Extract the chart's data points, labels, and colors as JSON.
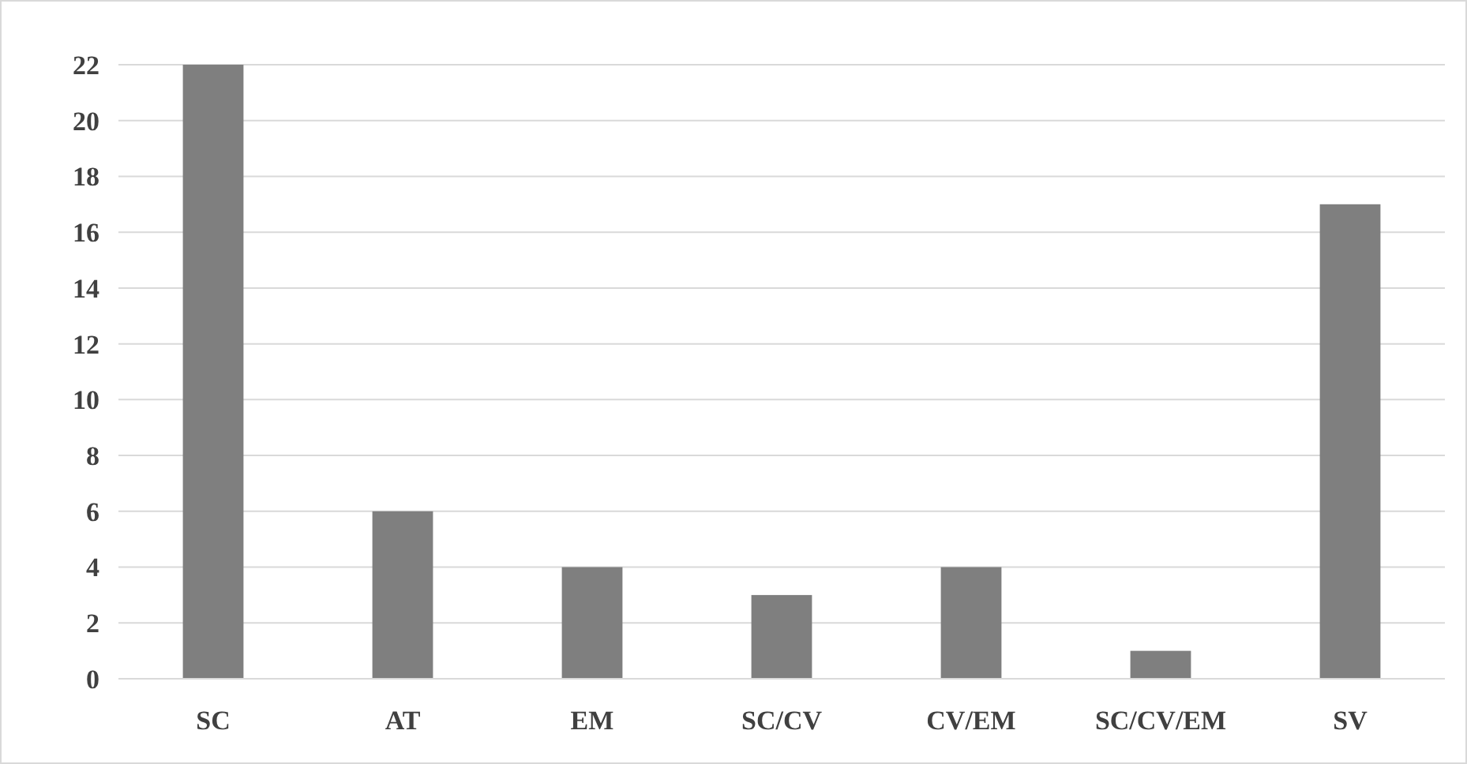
{
  "chart_data": {
    "type": "bar",
    "categories": [
      "SC",
      "AT",
      "EM",
      "SC/CV",
      "CV/EM",
      "SC/CV/EM",
      "SV"
    ],
    "values": [
      22,
      6,
      4,
      3,
      4,
      1,
      17
    ],
    "color": "#7f7f7f",
    "ylim": [
      0,
      22
    ],
    "yticks": [
      0,
      2,
      4,
      6,
      8,
      10,
      12,
      14,
      16,
      18,
      20,
      22
    ],
    "grid": "y"
  }
}
